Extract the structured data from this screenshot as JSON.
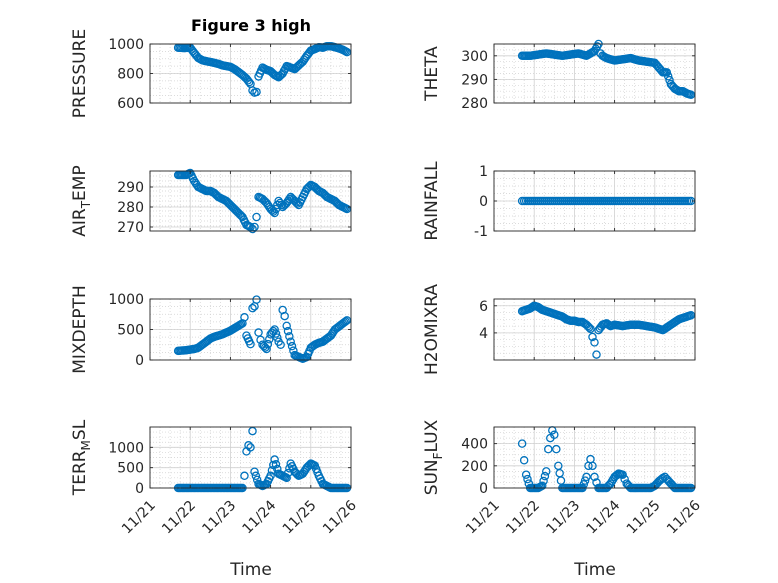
{
  "figure": {
    "title": "Figure 3 high"
  },
  "x_axis": {
    "label": "Time",
    "tick_labels": [
      "11/21",
      "11/22",
      "11/23",
      "11/24",
      "11/25",
      "11/26"
    ],
    "range_days": [
      0,
      5
    ]
  },
  "colors": {
    "marker": "#0072BD",
    "axes": "#262626",
    "grid": "#d0d0d0",
    "background": "#ffffff"
  },
  "chart_data": [
    {
      "type": "scatter",
      "name": "pressure",
      "ylabel": "PRESSURE",
      "ylim": [
        600,
        1000
      ],
      "yticks": [
        600,
        800,
        1000
      ],
      "xtick_labels_visible": false,
      "x": [
        0.7,
        0.85,
        1.0,
        1.1,
        1.2,
        1.3,
        1.4,
        1.5,
        1.6,
        1.7,
        1.8,
        1.9,
        2.0,
        2.1,
        2.2,
        2.3,
        2.4,
        2.5,
        2.55,
        2.6,
        2.65,
        2.7,
        2.8,
        2.9,
        3.0,
        3.1,
        3.2,
        3.3,
        3.4,
        3.5,
        3.6,
        3.7,
        3.8,
        3.9,
        4.0,
        4.1,
        4.2,
        4.3,
        4.4,
        4.5,
        4.6,
        4.7,
        4.8,
        4.9
      ],
      "y": [
        975,
        972,
        975,
        940,
        905,
        890,
        883,
        878,
        872,
        865,
        855,
        850,
        845,
        830,
        810,
        790,
        765,
        730,
        685,
        670,
        675,
        780,
        840,
        825,
        815,
        790,
        775,
        800,
        850,
        840,
        830,
        855,
        880,
        920,
        955,
        965,
        978,
        975,
        985,
        985,
        978,
        970,
        960,
        945
      ]
    },
    {
      "type": "scatter",
      "name": "theta",
      "ylabel": "THETA",
      "ylim": [
        280,
        305
      ],
      "yticks": [
        280,
        290,
        300
      ],
      "xtick_labels_visible": false,
      "x": [
        0.7,
        0.9,
        1.1,
        1.3,
        1.5,
        1.7,
        1.9,
        2.1,
        2.3,
        2.5,
        2.6,
        2.65,
        2.7,
        2.8,
        3.0,
        3.2,
        3.4,
        3.6,
        3.8,
        4.0,
        4.2,
        4.3,
        4.4,
        4.5,
        4.6,
        4.7,
        4.8,
        4.9
      ],
      "y": [
        300,
        300,
        300.5,
        301,
        300.5,
        300,
        300.5,
        301,
        300,
        302,
        305,
        301,
        300,
        299,
        298,
        298.5,
        299,
        298,
        297.5,
        297,
        293,
        293,
        288,
        286,
        285,
        285,
        284,
        283.5
      ]
    },
    {
      "type": "scatter",
      "name": "air_temp",
      "ylabel": "AIR_TEMP",
      "ylim": [
        268,
        298
      ],
      "yticks": [
        270,
        280,
        290
      ],
      "xtick_labels_visible": false,
      "x": [
        0.7,
        0.9,
        1.0,
        1.1,
        1.2,
        1.3,
        1.4,
        1.5,
        1.6,
        1.7,
        1.8,
        1.9,
        2.0,
        2.1,
        2.2,
        2.3,
        2.4,
        2.5,
        2.55,
        2.6,
        2.65,
        2.7,
        2.8,
        2.9,
        3.0,
        3.1,
        3.2,
        3.3,
        3.4,
        3.5,
        3.6,
        3.7,
        3.8,
        3.9,
        4.0,
        4.1,
        4.2,
        4.3,
        4.4,
        4.5,
        4.6,
        4.7,
        4.8,
        4.9
      ],
      "y": [
        296,
        296,
        297,
        293,
        290,
        289,
        288,
        288,
        287,
        285,
        284,
        283,
        281,
        279,
        277,
        275,
        271,
        270,
        269,
        270,
        275,
        285,
        284,
        282,
        279,
        277,
        283,
        280,
        282,
        285,
        283,
        281,
        285,
        289,
        291,
        290,
        288,
        287,
        285,
        284,
        283,
        281,
        280,
        279
      ]
    },
    {
      "type": "scatter",
      "name": "rainfall",
      "ylabel": "RAINFALL",
      "ylim": [
        -1,
        1
      ],
      "yticks": [
        -1,
        0,
        1
      ],
      "xtick_labels_visible": false,
      "x": [
        0.7,
        4.9
      ],
      "y": [
        0,
        0
      ],
      "dense_constant_line": true
    },
    {
      "type": "scatter",
      "name": "mixdepth",
      "ylabel": "MIXDEPTH",
      "ylim": [
        0,
        1000
      ],
      "yticks": [
        0,
        500,
        1000
      ],
      "xtick_labels_visible": false,
      "x": [
        0.7,
        0.9,
        1.1,
        1.2,
        1.3,
        1.4,
        1.5,
        1.6,
        1.7,
        1.8,
        1.9,
        2.0,
        2.1,
        2.2,
        2.3,
        2.35,
        2.4,
        2.5,
        2.55,
        2.6,
        2.65,
        2.7,
        2.75,
        2.8,
        2.9,
        3.0,
        3.1,
        3.2,
        3.25,
        3.3,
        3.35,
        3.4,
        3.5,
        3.6,
        3.7,
        3.8,
        3.9,
        4.0,
        4.1,
        4.2,
        4.3,
        4.4,
        4.5,
        4.6,
        4.7,
        4.8,
        4.9
      ],
      "y": [
        150,
        160,
        180,
        200,
        250,
        300,
        350,
        380,
        400,
        420,
        450,
        480,
        520,
        560,
        600,
        700,
        400,
        260,
        850,
        880,
        990,
        450,
        330,
        250,
        180,
        420,
        500,
        300,
        250,
        820,
        720,
        560,
        300,
        80,
        50,
        20,
        50,
        200,
        250,
        280,
        300,
        350,
        400,
        500,
        550,
        600,
        650
      ]
    },
    {
      "type": "scatter",
      "name": "h2omixra",
      "ylabel": "H2OMIXRA",
      "ylim": [
        2,
        6.5
      ],
      "yticks": [
        4,
        6
      ],
      "xtick_labels_visible": false,
      "x": [
        0.7,
        0.9,
        1.0,
        1.1,
        1.2,
        1.3,
        1.4,
        1.5,
        1.6,
        1.7,
        1.8,
        1.9,
        2.0,
        2.1,
        2.2,
        2.3,
        2.4,
        2.45,
        2.5,
        2.55,
        2.6,
        2.7,
        2.8,
        2.9,
        3.0,
        3.2,
        3.4,
        3.6,
        3.8,
        4.0,
        4.2,
        4.4,
        4.5,
        4.6,
        4.7,
        4.8,
        4.9
      ],
      "y": [
        5.6,
        5.8,
        6.0,
        5.9,
        5.7,
        5.6,
        5.5,
        5.4,
        5.3,
        5.2,
        5.0,
        4.9,
        4.9,
        4.8,
        4.8,
        4.6,
        4.3,
        3.7,
        3.3,
        2.4,
        4.2,
        4.6,
        4.7,
        4.5,
        4.6,
        4.5,
        4.6,
        4.6,
        4.5,
        4.4,
        4.2,
        4.6,
        4.8,
        5.0,
        5.1,
        5.2,
        5.3
      ]
    },
    {
      "type": "scatter",
      "name": "terr_msl",
      "ylabel": "TERR_MSL",
      "ylim": [
        0,
        1500
      ],
      "yticks": [
        0,
        500,
        1000
      ],
      "xtick_labels_visible": true,
      "x": [
        0.7,
        1.0,
        1.5,
        2.0,
        2.2,
        2.3,
        2.35,
        2.4,
        2.45,
        2.5,
        2.55,
        2.6,
        2.7,
        2.8,
        2.9,
        3.0,
        3.1,
        3.2,
        3.3,
        3.4,
        3.5,
        3.6,
        3.7,
        3.8,
        3.9,
        4.0,
        4.1,
        4.2,
        4.3,
        4.5,
        4.7,
        4.9
      ],
      "y": [
        0,
        0,
        0,
        0,
        0,
        0,
        300,
        900,
        1050,
        1000,
        1400,
        400,
        100,
        50,
        100,
        300,
        700,
        350,
        300,
        250,
        600,
        400,
        300,
        350,
        500,
        600,
        550,
        300,
        100,
        0,
        0,
        0
      ]
    },
    {
      "type": "scatter",
      "name": "sun_flux",
      "ylabel": "SUN_FLUX",
      "ylim": [
        0,
        550
      ],
      "yticks": [
        0,
        200,
        400
      ],
      "xtick_labels_visible": true,
      "x": [
        0.7,
        0.75,
        0.8,
        0.9,
        1.0,
        1.1,
        1.2,
        1.3,
        1.35,
        1.4,
        1.45,
        1.5,
        1.55,
        1.6,
        1.7,
        1.8,
        1.9,
        2.0,
        2.1,
        2.2,
        2.3,
        2.35,
        2.4,
        2.45,
        2.5,
        2.55,
        2.6,
        2.7,
        2.8,
        2.9,
        3.0,
        3.1,
        3.2,
        3.25,
        3.3,
        3.4,
        3.5,
        3.6,
        3.7,
        3.8,
        3.9,
        4.0,
        4.1,
        4.2,
        4.25,
        4.3,
        4.4,
        4.5,
        4.6,
        4.7,
        4.8,
        4.9
      ],
      "y": [
        400,
        250,
        120,
        0,
        0,
        0,
        20,
        150,
        350,
        450,
        520,
        480,
        350,
        200,
        0,
        0,
        0,
        0,
        0,
        0,
        100,
        200,
        260,
        200,
        100,
        50,
        0,
        0,
        0,
        40,
        100,
        130,
        120,
        80,
        40,
        0,
        0,
        0,
        0,
        0,
        0,
        20,
        60,
        90,
        100,
        80,
        40,
        0,
        0,
        0,
        0,
        0
      ]
    }
  ]
}
